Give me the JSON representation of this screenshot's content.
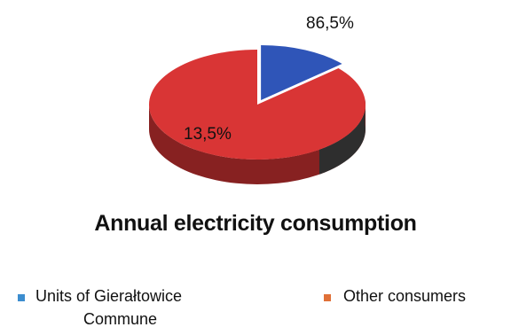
{
  "chart_data": {
    "type": "pie",
    "title": "Annual electricity consumption",
    "slices": [
      {
        "name": "Units of Gierałtowice Commune",
        "value": 13.5,
        "color": "#2f55b8"
      },
      {
        "name": "Other consumers",
        "value": 86.5,
        "color": "#d93535"
      }
    ],
    "data_labels": [
      "86,5%",
      "13,5%"
    ],
    "legend": {
      "position": "bottom",
      "items": [
        {
          "line1": "Units of Gierałtowice",
          "line2": "Commune",
          "color": "#3c8dcf"
        },
        {
          "line1": "Other consumers",
          "color": "#e07038"
        }
      ]
    }
  }
}
